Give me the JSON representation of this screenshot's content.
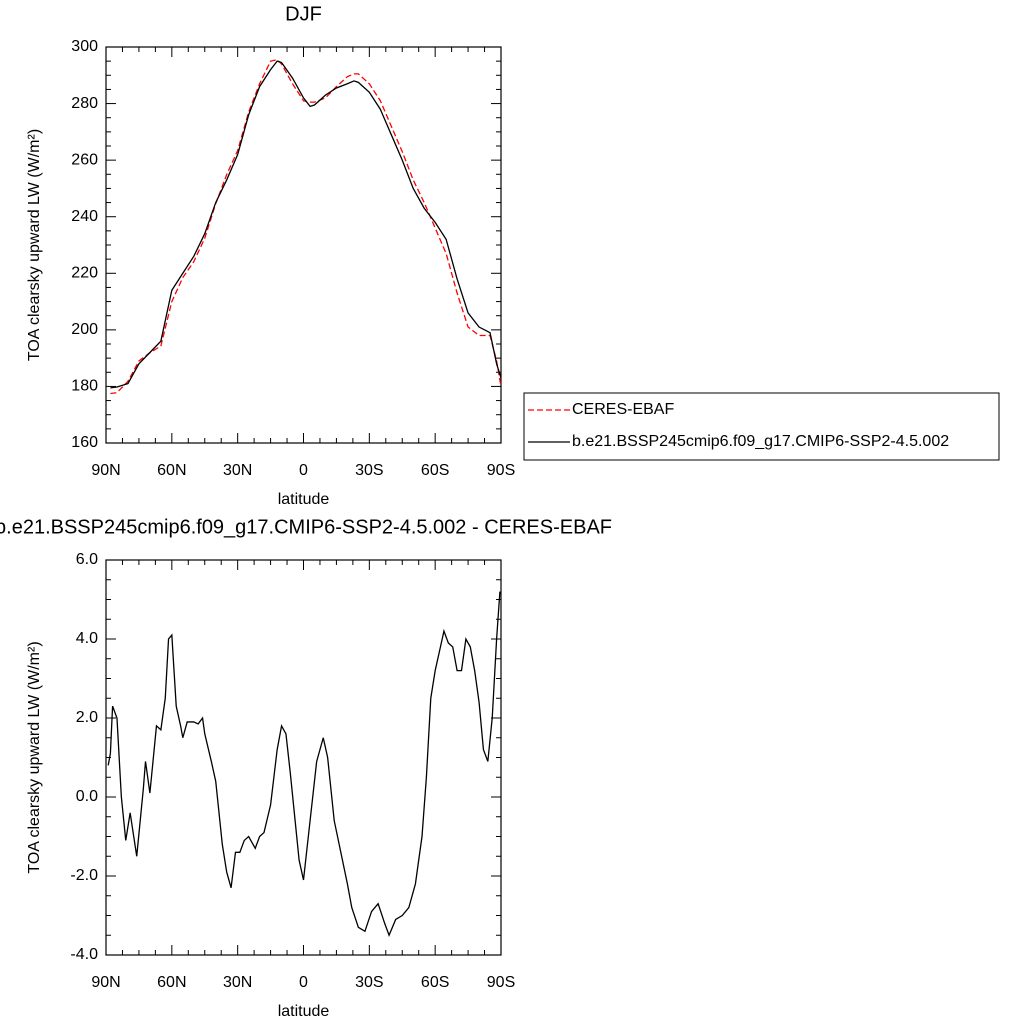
{
  "chart_data": [
    {
      "type": "line",
      "title": "DJF",
      "x_label": "latitude",
      "y_label": "TOA clearsky upward LW (W/m²)",
      "x": [
        88,
        85,
        80,
        75,
        70,
        65,
        60,
        55,
        50,
        45,
        40,
        35,
        30,
        25,
        20,
        15,
        12,
        10,
        5,
        0,
        -3,
        -5,
        -10,
        -15,
        -20,
        -23,
        -25,
        -30,
        -35,
        -40,
        -45,
        -50,
        -55,
        -60,
        -65,
        -70,
        -75,
        -80,
        -85,
        -88,
        -90
      ],
      "series": [
        {
          "name": "CERES-EBAF",
          "color": "#ff0000",
          "style": "dashed",
          "values": [
            177.5,
            177.8,
            181.8,
            189,
            191.9,
            194.3,
            210,
            218.5,
            224.1,
            232.4,
            244.6,
            254.9,
            263.4,
            277,
            287,
            295,
            295.5,
            294,
            287,
            281,
            280.5,
            280.5,
            282,
            286,
            289.5,
            290.5,
            290.5,
            287,
            281,
            272,
            263,
            253,
            245,
            236,
            227,
            213,
            201,
            198,
            198,
            189,
            180
          ]
        },
        {
          "name": "b.e21.BSSP245cmip6.f09_g17.CMIP6-SSP2-4.5.002",
          "color": "#000000",
          "style": "solid",
          "values": [
            179.5,
            179.8,
            181,
            188,
            192,
            196,
            214,
            220,
            226,
            234,
            245,
            253,
            262,
            276,
            286,
            292,
            295,
            294.5,
            289,
            282,
            279,
            279.5,
            283,
            285.5,
            287,
            288,
            287.5,
            284,
            278,
            269,
            260,
            250,
            243,
            238,
            232,
            218,
            206,
            201,
            199,
            188,
            183
          ]
        }
      ],
      "xlim": [
        90,
        -90
      ],
      "xticks": [
        {
          "value": 90,
          "label": "90N"
        },
        {
          "value": 60,
          "label": "60N"
        },
        {
          "value": 30,
          "label": "30N"
        },
        0,
        {
          "value": -30,
          "label": "30S"
        },
        {
          "value": -60,
          "label": "60S"
        },
        {
          "value": -90,
          "label": "90S"
        }
      ],
      "ylim": [
        160,
        300
      ],
      "yticks": [
        160,
        180,
        200,
        220,
        240,
        260,
        280,
        300
      ],
      "legend": "right"
    },
    {
      "type": "line",
      "title": "b.e21.BSSP245cmip6.f09_g17.CMIP6-SSP2-4.5.002 - CERES-EBAF",
      "x_label": "latitude",
      "y_label": "TOA clearsky upward LW (W/m²)",
      "x": [
        89,
        88,
        87,
        85,
        83,
        81,
        79,
        76,
        73,
        72,
        70,
        67,
        65,
        63,
        61.5,
        60,
        58,
        56,
        55,
        53,
        50,
        48,
        46,
        45,
        42,
        40,
        37,
        35,
        33,
        31,
        29,
        27,
        25,
        22,
        20,
        18,
        15,
        12,
        10,
        8,
        6,
        4,
        2,
        0,
        -3,
        -6,
        -9,
        -11,
        -14,
        -17,
        -20,
        -22,
        -25,
        -28,
        -31,
        -34,
        -37,
        -39,
        -42,
        -45,
        -48,
        -51,
        -54,
        -56,
        -58,
        -60,
        -62,
        -64,
        -66,
        -68,
        -70,
        -72,
        -74,
        -76,
        -78,
        -80,
        -82,
        -84,
        -86,
        -88,
        -89.5
      ],
      "color": "#000000",
      "values": [
        0.8,
        1.1,
        2.3,
        2.0,
        0.0,
        -1.1,
        -0.4,
        -1.5,
        0.2,
        0.9,
        0.1,
        1.8,
        1.7,
        2.5,
        4.0,
        4.1,
        2.3,
        1.8,
        1.5,
        1.9,
        1.9,
        1.85,
        2.0,
        1.6,
        0.9,
        0.4,
        -1.2,
        -1.9,
        -2.3,
        -1.4,
        -1.4,
        -1.1,
        -1.0,
        -1.3,
        -1.0,
        -0.9,
        -0.2,
        1.2,
        1.8,
        1.6,
        0.6,
        -0.5,
        -1.6,
        -2.1,
        -0.6,
        0.9,
        1.5,
        1.0,
        -0.6,
        -1.4,
        -2.2,
        -2.8,
        -3.3,
        -3.4,
        -2.9,
        -2.7,
        -3.2,
        -3.5,
        -3.1,
        -3.0,
        -2.8,
        -2.2,
        -1.0,
        0.5,
        2.5,
        3.2,
        3.7,
        4.2,
        3.9,
        3.8,
        3.2,
        3.2,
        4.0,
        3.8,
        3.2,
        2.4,
        1.2,
        0.9,
        2.0,
        4.0,
        5.2
      ],
      "xlim": [
        90,
        -90
      ],
      "xticks": [
        {
          "value": 90,
          "label": "90N"
        },
        {
          "value": 60,
          "label": "60N"
        },
        {
          "value": 30,
          "label": "30N"
        },
        0,
        {
          "value": -30,
          "label": "30S"
        },
        {
          "value": -60,
          "label": "60S"
        },
        {
          "value": -90,
          "label": "90S"
        }
      ],
      "ylim": [
        -4,
        6
      ],
      "yticks": [
        {
          "value": -4,
          "label": "-4.0"
        },
        {
          "value": -2,
          "label": "-2.0"
        },
        {
          "value": 0,
          "label": "0.0"
        },
        {
          "value": 2,
          "label": "2.0"
        },
        {
          "value": 4,
          "label": "4.0"
        },
        {
          "value": 6,
          "label": "6.0"
        }
      ]
    }
  ]
}
